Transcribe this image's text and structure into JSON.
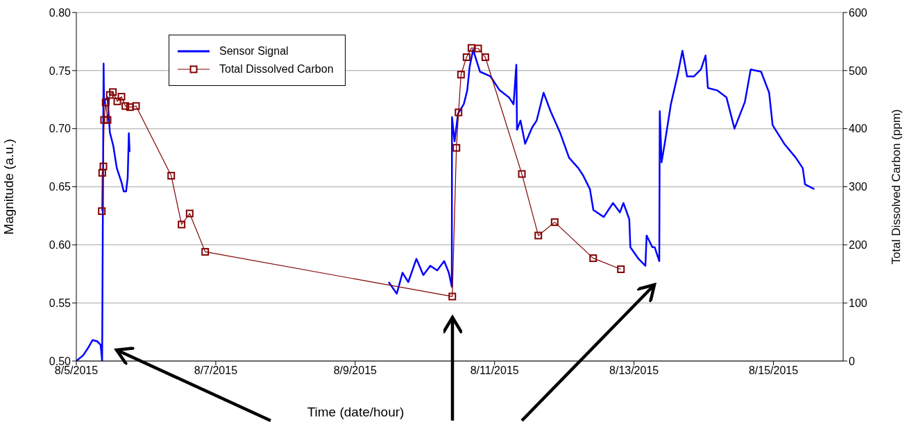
{
  "chart_data": {
    "type": "line",
    "xlabel": "Time (date/hour)",
    "ylabel": "Magnitude (a.u.)",
    "y2label": "Total Dissolved Carbon (ppm)",
    "xlim": [
      "2015-08-05",
      "2015-08-16"
    ],
    "xticks": [
      {
        "value": "2015-08-05",
        "label": "8/5/2015"
      },
      {
        "value": "2015-08-07",
        "label": "8/7/2015"
      },
      {
        "value": "2015-08-09",
        "label": "8/9/2015"
      },
      {
        "value": "2015-08-11",
        "label": "8/11/2015"
      },
      {
        "value": "2015-08-13",
        "label": "8/13/2015"
      },
      {
        "value": "2015-08-15",
        "label": "8/15/2015"
      }
    ],
    "ylim": [
      0.5,
      0.8
    ],
    "yticks": [
      {
        "value": 0.5,
        "label": "0.50"
      },
      {
        "value": 0.55,
        "label": "0.55"
      },
      {
        "value": 0.6,
        "label": "0.60"
      },
      {
        "value": 0.65,
        "label": "0.65"
      },
      {
        "value": 0.7,
        "label": "0.70"
      },
      {
        "value": 0.75,
        "label": "0.75"
      },
      {
        "value": 0.8,
        "label": "0.80"
      }
    ],
    "y2lim": [
      0,
      600
    ],
    "y2ticks": [
      0,
      100,
      200,
      300,
      400,
      500,
      600
    ],
    "grid": "y",
    "legend": "top left",
    "series": [
      {
        "name": "Sensor Signal",
        "color": "#0000ff",
        "marker": "none",
        "x": [
          "2015-08-05T00:00",
          "2015-08-05T02:23",
          "2015-08-05T03:59",
          "2015-08-05T05:34",
          "2015-08-05T07:10",
          "2015-08-05T08:22",
          "2015-08-05T08:53",
          "2015-08-05T09:23",
          "2015-08-05T09:33",
          "2015-08-05T09:58",
          "2015-08-05T10:45",
          "2015-08-05T11:32",
          "2015-08-05T12:44",
          "2015-08-05T13:56",
          "2015-08-05T15:32",
          "2015-08-05T16:19",
          "2015-08-05T17:08",
          "2015-08-05T17:41",
          "2015-08-05T18:05",
          "2015-08-05T18:20",
          "2015-08-07T12:00",
          "2015-08-09T11:31",
          "2015-08-09T14:19",
          "2015-08-09T16:18",
          "2015-08-09T18:17",
          "2015-08-09T21:05",
          "2015-08-09T23:28",
          "2015-08-10T01:52",
          "2015-08-10T04:14",
          "2015-08-10T06:38",
          "2015-08-10T08:14",
          "2015-08-10T09:16",
          "2015-08-10T09:20",
          "2015-08-10T10:13",
          "2015-08-10T11:25",
          "2015-08-10T13:23",
          "2015-08-10T14:35",
          "2015-08-10T15:24",
          "2015-08-10T16:36",
          "2015-08-10T18:59",
          "2015-08-10T22:34",
          "2015-08-11T01:45",
          "2015-08-11T04:56",
          "2015-08-11T06:32",
          "2015-08-11T07:29",
          "2015-08-11T07:43",
          "2015-08-11T08:55",
          "2015-08-11T10:31",
          "2015-08-11T12:55",
          "2015-08-11T14:29",
          "2015-08-11T16:52",
          "2015-08-11T19:16",
          "2015-08-11T22:28",
          "2015-08-12T01:38",
          "2015-08-12T04:49",
          "2015-08-12T06:25",
          "2015-08-12T08:49",
          "2015-08-12T10:00",
          "2015-08-12T13:35",
          "2015-08-12T16:46",
          "2015-08-12T19:09",
          "2015-08-12T20:21",
          "2015-08-12T22:22",
          "2015-08-12T22:44",
          "2015-08-13T01:32",
          "2015-08-13T03:55",
          "2015-08-13T04:20",
          "2015-08-13T06:19",
          "2015-08-13T07:06",
          "2015-08-13T08:42",
          "2015-08-13T08:52",
          "2015-08-13T09:29",
          "2015-08-13T10:41",
          "2015-08-13T12:41",
          "2015-08-13T15:05",
          "2015-08-13T16:40",
          "2015-08-13T18:16",
          "2015-08-13T20:39",
          "2015-08-13T23:02",
          "2015-08-14T00:38",
          "2015-08-14T01:26",
          "2015-08-14T04:36",
          "2015-08-14T07:49",
          "2015-08-14T10:35",
          "2015-08-14T14:10",
          "2015-08-14T16:10",
          "2015-08-14T19:45",
          "2015-08-14T22:31",
          "2015-08-14T23:43",
          "2015-08-15T03:43",
          "2015-08-15T07:42",
          "2015-08-15T10:05",
          "2015-08-15T10:53",
          "2015-08-15T14:04"
        ],
        "values": [
          0.5,
          0.505,
          0.511,
          0.518,
          0.517,
          0.514,
          0.5,
          0.756,
          0.721,
          0.725,
          0.727,
          0.697,
          0.685,
          0.666,
          0.654,
          0.646,
          0.646,
          0.658,
          0.696,
          0.68,
          null,
          0.568,
          0.558,
          0.576,
          0.568,
          0.588,
          0.574,
          0.582,
          0.578,
          0.586,
          0.576,
          0.564,
          0.71,
          0.689,
          0.713,
          0.721,
          0.733,
          0.753,
          0.768,
          0.749,
          0.745,
          0.733,
          0.727,
          0.721,
          0.755,
          0.699,
          0.707,
          0.687,
          0.701,
          0.707,
          0.731,
          0.715,
          0.697,
          0.675,
          0.666,
          0.66,
          0.648,
          0.63,
          0.624,
          0.636,
          0.628,
          0.636,
          0.622,
          0.598,
          0.588,
          0.582,
          0.608,
          0.598,
          0.598,
          0.586,
          0.715,
          0.671,
          0.689,
          0.721,
          0.747,
          0.767,
          0.745,
          0.745,
          0.751,
          0.763,
          0.735,
          0.733,
          0.727,
          0.7,
          0.723,
          0.751,
          0.749,
          0.731,
          0.703,
          0.687,
          0.675,
          0.666,
          0.652,
          0.648
        ]
      },
      {
        "name": "Total Dissolved Carbon",
        "color": "#800000",
        "marker": "square",
        "axis": "y2",
        "x": [
          "2015-08-05T08:46",
          "2015-08-05T08:55",
          "2015-08-05T09:19",
          "2015-08-05T09:33",
          "2015-08-05T10:06",
          "2015-08-05T10:45",
          "2015-08-05T11:32",
          "2015-08-05T12:35",
          "2015-08-05T14:06",
          "2015-08-05T15:32",
          "2015-08-05T16:53",
          "2015-08-05T18:28",
          "2015-08-05T20:33",
          "2015-08-06T08:40",
          "2015-08-06T12:14",
          "2015-08-06T15:01",
          "2015-08-06T20:22",
          "2015-08-10T09:26",
          "2015-08-10T10:51",
          "2015-08-10T11:35",
          "2015-08-10T12:26",
          "2015-08-10T14:21",
          "2015-08-10T16:02",
          "2015-08-10T18:20",
          "2015-08-10T20:48",
          "2015-08-11T09:23",
          "2015-08-11T15:03",
          "2015-08-11T20:41",
          "2015-08-12T09:56",
          "2015-08-12T19:29"
        ],
        "values": [
          258,
          324,
          335,
          415,
          445,
          415,
          458,
          463,
          447,
          455,
          439,
          437,
          439,
          319,
          235,
          254,
          188,
          111,
          367,
          428,
          493,
          523,
          539,
          538,
          523,
          322,
          216,
          239,
          177,
          158
        ]
      }
    ]
  }
}
